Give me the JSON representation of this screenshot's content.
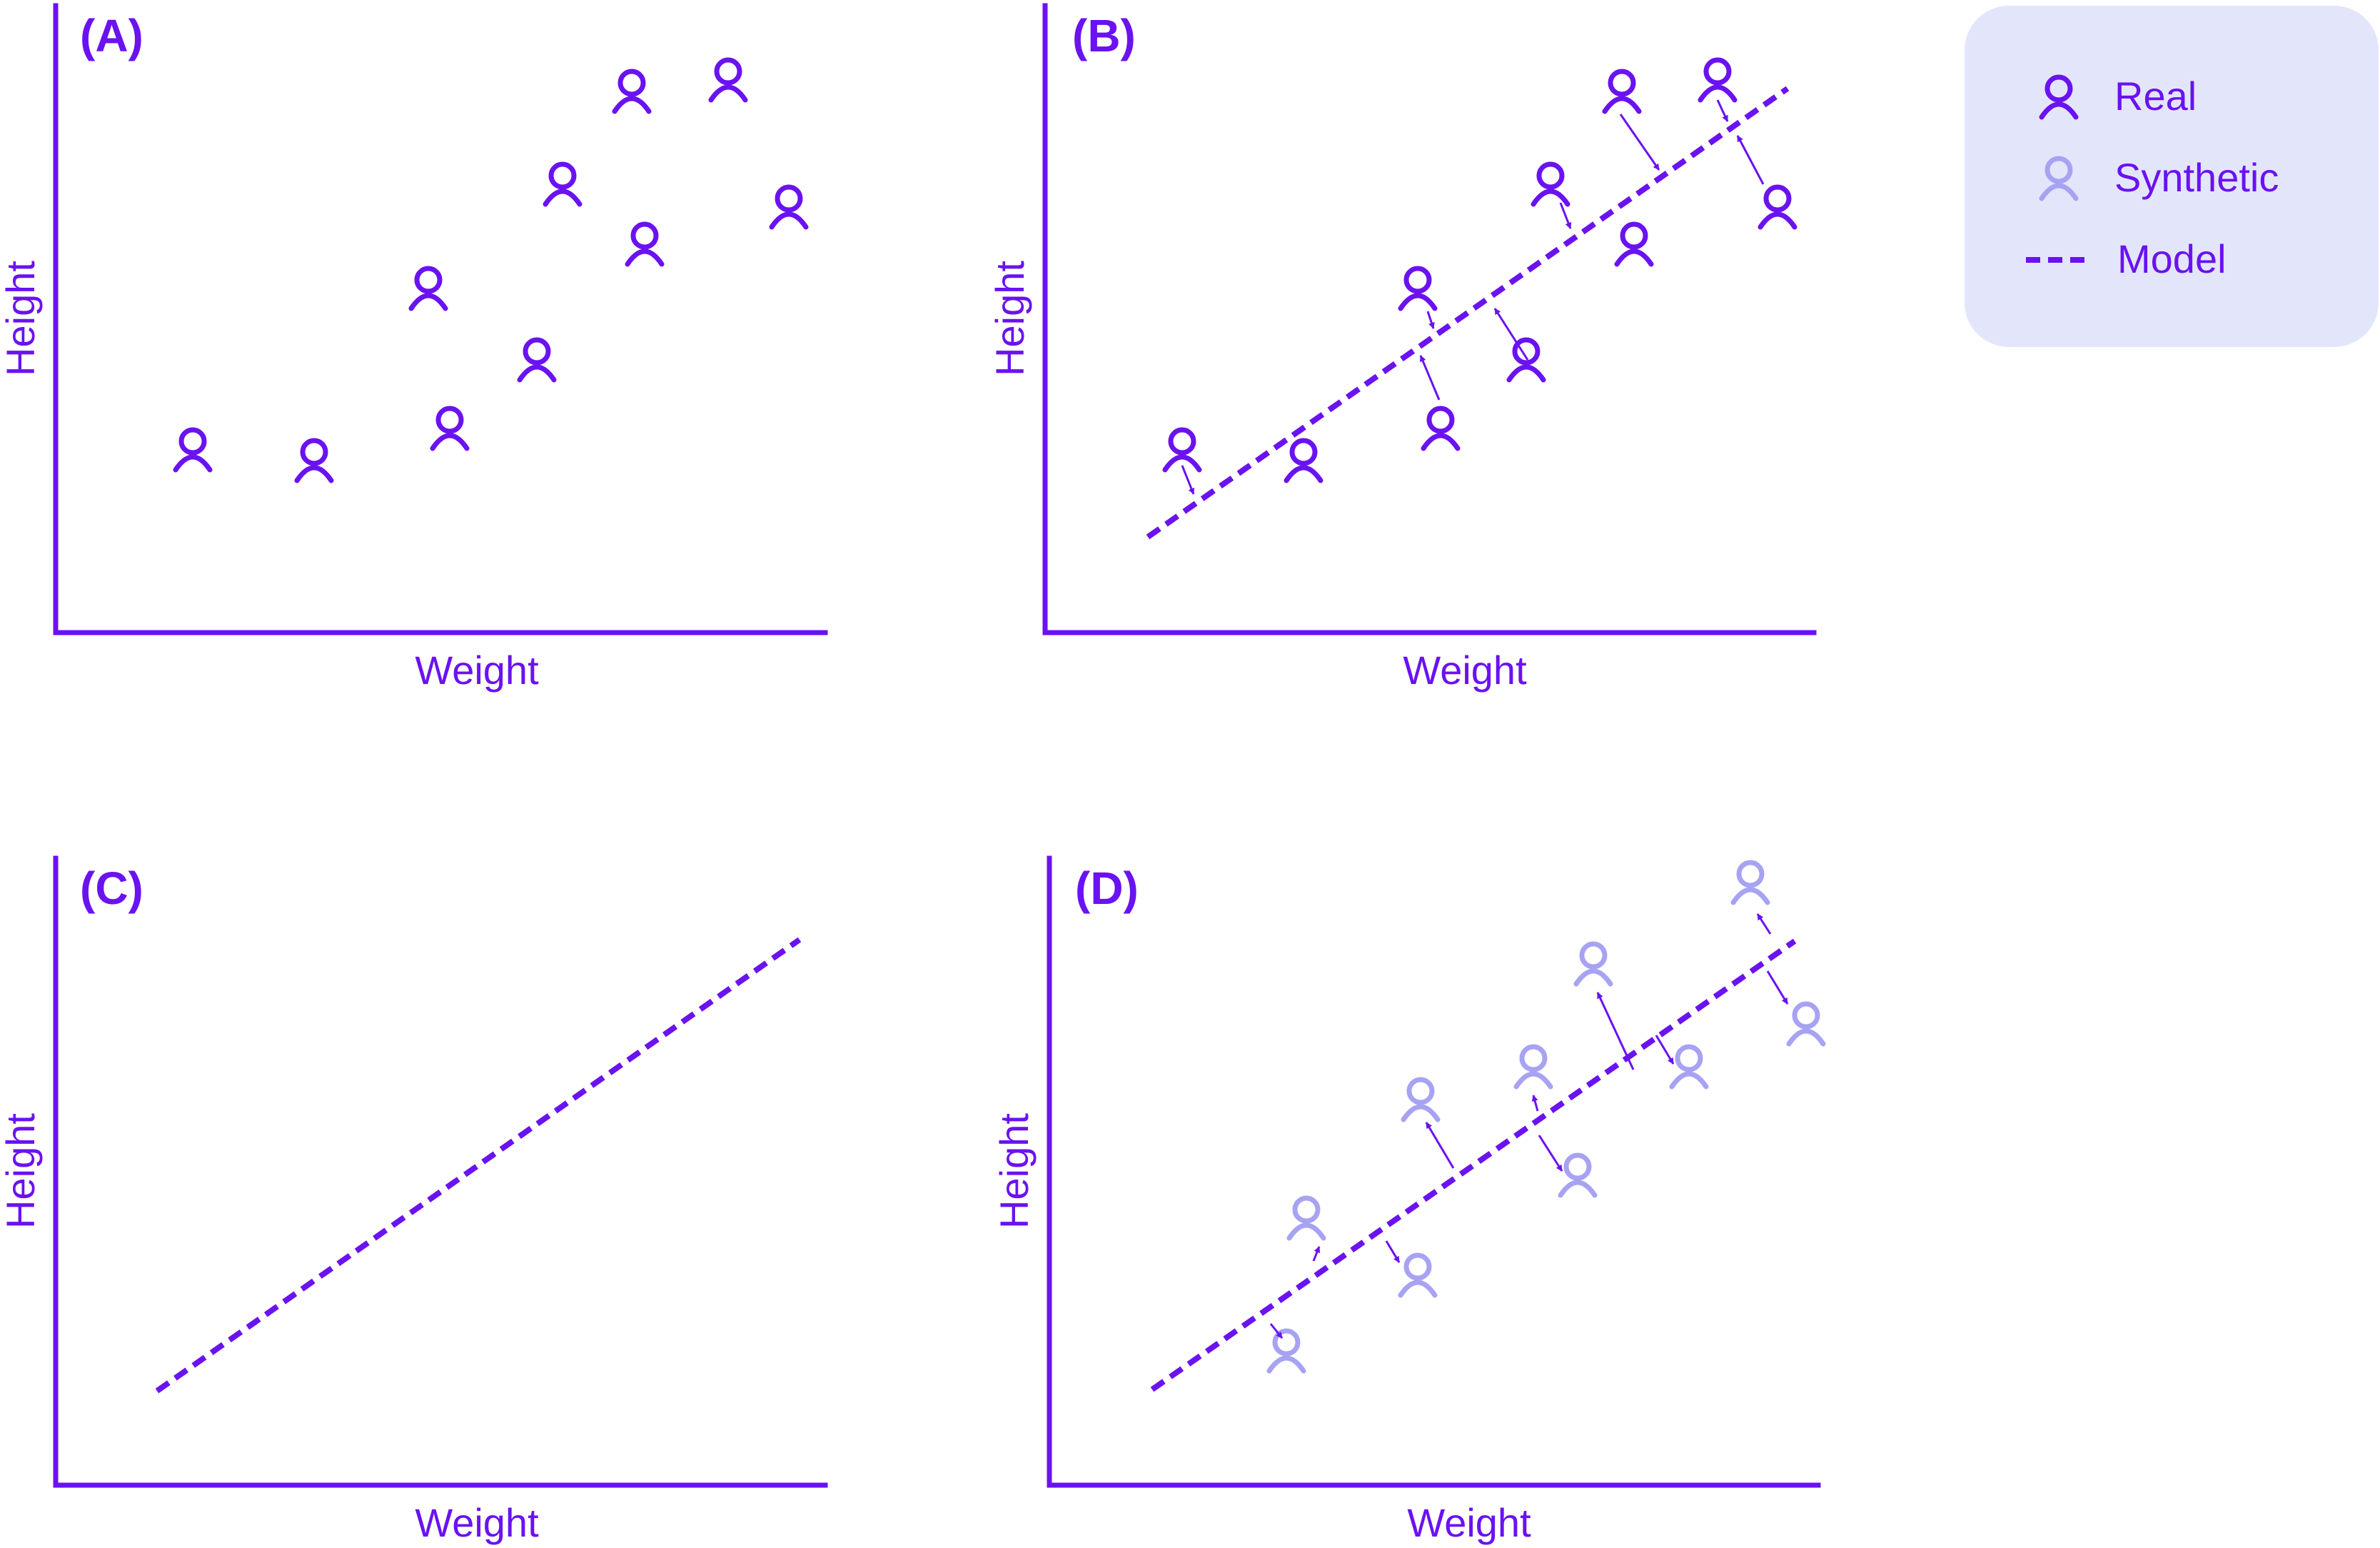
{
  "colors": {
    "real": "#6a12f0",
    "synthetic": "#a7a3f2",
    "legend_bg": "#e3e6fb"
  },
  "icon": "person-icon",
  "legend": {
    "real_label": "Real",
    "synthetic_label": "Synthetic",
    "model_label": "Model"
  },
  "panels": [
    {
      "label": "(A)",
      "xlabel": "Weight",
      "ylabel": "Height"
    },
    {
      "label": "(B)",
      "xlabel": "Weight",
      "ylabel": "Height"
    },
    {
      "label": "(C)",
      "xlabel": "Weight",
      "ylabel": "Height"
    },
    {
      "label": "(D)",
      "xlabel": "Weight",
      "ylabel": "Height"
    }
  ]
}
